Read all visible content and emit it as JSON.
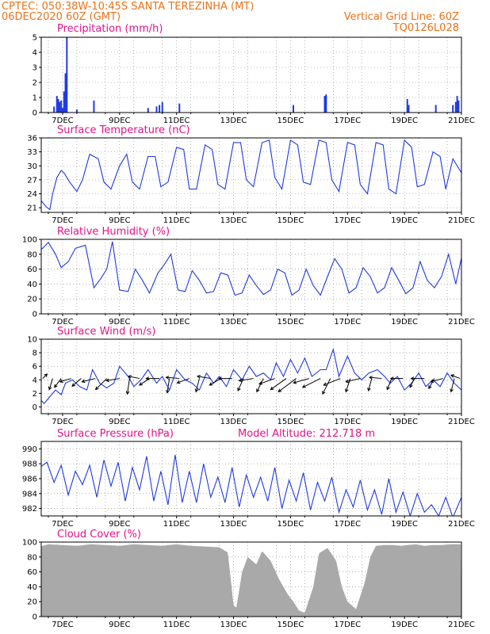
{
  "header": {
    "line1_left": "CPTEC:   050:38W-10:45S   SANTA TEREZINHA (MT)",
    "line2_left": "06DEC2020 60Z (GMT)",
    "line1_right": "Vertical Grid Line: 60Z",
    "line2_right": "TQ0126L028"
  },
  "colors": {
    "header": "#e8731a",
    "title": "#e0148c",
    "series": "#1f3ae0",
    "cloud": "#a9a9a9",
    "arrow": "#000000"
  },
  "x_ticks": [
    "7DEC",
    "9DEC",
    "11DEC",
    "13DEC",
    "15DEC",
    "17DEC",
    "19DEC",
    "21DEC"
  ],
  "chart_data": [
    {
      "id": "precip",
      "type": "bar",
      "title": "Precipitation (mm/h)",
      "ylim": [
        0,
        5
      ],
      "yticks": [
        0,
        1,
        2,
        3,
        4,
        5
      ],
      "grid": true,
      "x_days": [
        6.7,
        6.8,
        6.85,
        6.9,
        6.95,
        7.0,
        7.05,
        7.1,
        7.15,
        7.5,
        8.1,
        10.0,
        10.3,
        10.4,
        10.5,
        11.1,
        15.1,
        16.2,
        16.25,
        19.1,
        19.15,
        20.1,
        20.7,
        20.8,
        20.85,
        20.9
      ],
      "values": [
        0.4,
        1.1,
        0.9,
        0.7,
        0.8,
        0.3,
        1.4,
        2.6,
        5.0,
        0.2,
        0.8,
        0.3,
        0.4,
        0.5,
        0.7,
        0.6,
        0.5,
        1.1,
        1.2,
        0.9,
        0.5,
        0.5,
        0.5,
        0.7,
        1.1,
        0.8
      ]
    },
    {
      "id": "temp",
      "type": "line",
      "title": "Surface Temperature (nC)",
      "ylim": [
        20,
        36
      ],
      "yticks": [
        21,
        24,
        27,
        30,
        33,
        36
      ],
      "grid": true,
      "x_days": [
        6.25,
        6.42,
        6.55,
        6.65,
        6.8,
        6.95,
        7.05,
        7.25,
        7.5,
        7.7,
        7.95,
        8.25,
        8.45,
        8.7,
        9.0,
        9.25,
        9.45,
        9.7,
        10.0,
        10.25,
        10.45,
        10.7,
        11.0,
        11.25,
        11.45,
        11.7,
        12.0,
        12.25,
        12.45,
        12.7,
        13.0,
        13.25,
        13.45,
        13.7,
        14.0,
        14.25,
        14.45,
        14.7,
        15.0,
        15.25,
        15.45,
        15.7,
        16.0,
        16.25,
        16.45,
        16.7,
        17.0,
        17.25,
        17.45,
        17.7,
        18.0,
        18.25,
        18.45,
        18.7,
        19.0,
        19.25,
        19.45,
        19.7,
        20.0,
        20.25,
        20.45,
        20.7,
        21.0
      ],
      "values": [
        22.5,
        21.2,
        20.6,
        24.0,
        27.5,
        29.0,
        28.5,
        26.5,
        24.5,
        27.0,
        32.5,
        31.5,
        26.5,
        25.0,
        30.0,
        32.5,
        26.5,
        25.0,
        32.0,
        32.0,
        25.5,
        26.5,
        34.0,
        33.5,
        25.0,
        25.0,
        34.5,
        33.5,
        26.0,
        25.0,
        35.0,
        35.0,
        27.0,
        25.5,
        35.0,
        35.5,
        27.5,
        25.0,
        35.5,
        34.5,
        26.5,
        26.0,
        35.5,
        35.0,
        27.0,
        24.5,
        35.0,
        34.5,
        26.0,
        24.0,
        35.0,
        34.5,
        25.0,
        24.0,
        35.5,
        34.0,
        25.5,
        26.0,
        33.0,
        32.0,
        25.0,
        31.5,
        28.5
      ]
    },
    {
      "id": "rh",
      "type": "line",
      "title": "Relative Humidity (%)",
      "ylim": [
        0,
        100
      ],
      "yticks": [
        0,
        20,
        40,
        60,
        80,
        100
      ],
      "grid": true,
      "x_days": [
        6.0,
        6.3,
        6.5,
        6.75,
        6.95,
        7.2,
        7.45,
        7.8,
        8.1,
        8.35,
        8.55,
        8.75,
        9.0,
        9.3,
        9.55,
        9.8,
        10.05,
        10.35,
        10.55,
        10.8,
        11.05,
        11.3,
        11.55,
        11.8,
        12.05,
        12.3,
        12.55,
        12.8,
        13.05,
        13.3,
        13.55,
        13.8,
        14.05,
        14.3,
        14.55,
        14.8,
        15.05,
        15.3,
        15.55,
        15.8,
        16.05,
        16.3,
        16.55,
        16.8,
        17.05,
        17.3,
        17.55,
        17.8,
        18.05,
        18.3,
        18.55,
        18.8,
        19.05,
        19.3,
        19.55,
        19.8,
        20.05,
        20.3,
        20.55,
        20.8,
        21.0
      ],
      "values": [
        82,
        88,
        96,
        80,
        62,
        70,
        88,
        92,
        35,
        48,
        60,
        97,
        32,
        30,
        60,
        45,
        28,
        55,
        65,
        80,
        32,
        30,
        58,
        45,
        28,
        30,
        55,
        52,
        25,
        28,
        52,
        38,
        26,
        32,
        60,
        55,
        25,
        32,
        60,
        38,
        25,
        50,
        74,
        60,
        28,
        35,
        62,
        50,
        28,
        35,
        62,
        45,
        27,
        35,
        70,
        45,
        35,
        50,
        80,
        40,
        75
      ]
    },
    {
      "id": "wind",
      "type": "line",
      "title": "Surface Wind (m/s)",
      "ylim": [
        -1,
        10
      ],
      "yticks": [
        0,
        2,
        4,
        6,
        8,
        10
      ],
      "grid": true,
      "x_days": [
        6.0,
        6.2,
        6.35,
        6.55,
        6.75,
        6.95,
        7.1,
        7.35,
        7.6,
        7.85,
        8.05,
        8.3,
        8.55,
        8.8,
        9.0,
        9.3,
        9.5,
        9.75,
        10.0,
        10.3,
        10.5,
        10.75,
        11.0,
        11.3,
        11.55,
        11.8,
        12.05,
        12.3,
        12.5,
        12.75,
        13.0,
        13.3,
        13.55,
        13.8,
        14.05,
        14.3,
        14.5,
        14.75,
        15.0,
        15.25,
        15.5,
        15.75,
        16.05,
        16.25,
        16.5,
        16.7,
        17.0,
        17.25,
        17.5,
        17.75,
        18.05,
        18.3,
        18.5,
        18.75,
        19.0,
        19.25,
        19.5,
        19.75,
        20.0,
        20.25,
        20.5,
        20.75,
        21.0
      ],
      "values": [
        0.5,
        1.2,
        0.5,
        1.5,
        2.5,
        1.8,
        3.5,
        4.0,
        3.0,
        2.5,
        5.5,
        3.5,
        2.8,
        3.5,
        6.0,
        4.5,
        3.0,
        4.0,
        5.5,
        3.5,
        4.5,
        2.5,
        5.5,
        4.0,
        3.5,
        2.5,
        5.0,
        3.5,
        4.5,
        3.0,
        5.5,
        4.0,
        6.0,
        4.5,
        5.0,
        4.0,
        6.5,
        4.5,
        7.0,
        5.0,
        7.2,
        4.5,
        5.5,
        5.5,
        8.5,
        4.5,
        7.5,
        5.0,
        4.0,
        5.0,
        5.5,
        4.5,
        3.5,
        4.5,
        2.5,
        3.5,
        5.0,
        3.0,
        4.0,
        3.0,
        5.0,
        3.5,
        2.5
      ],
      "arrows": [
        {
          "x_day": 6.3,
          "u": 0.4,
          "v": 0.4
        },
        {
          "x_day": 6.65,
          "u": -0.3,
          "v": -1.0
        },
        {
          "x_day": 6.95,
          "u": -0.6,
          "v": -0.8
        },
        {
          "x_day": 7.3,
          "u": -1.0,
          "v": -0.3
        },
        {
          "x_day": 7.65,
          "u": -0.8,
          "v": -0.7
        },
        {
          "x_day": 8.15,
          "u": -1.2,
          "v": -0.3
        },
        {
          "x_day": 8.55,
          "u": -1.0,
          "v": -1.0
        },
        {
          "x_day": 9.0,
          "u": -1.2,
          "v": -0.2
        },
        {
          "x_day": 9.35,
          "u": -0.2,
          "v": -1.4
        },
        {
          "x_day": 9.7,
          "u": -1.0,
          "v": 0.2
        },
        {
          "x_day": 10.05,
          "u": -0.9,
          "v": -0.6
        },
        {
          "x_day": 10.4,
          "u": -1.2,
          "v": 0.0
        },
        {
          "x_day": 10.75,
          "u": -0.2,
          "v": -1.3
        },
        {
          "x_day": 11.1,
          "u": -1.2,
          "v": 0.1
        },
        {
          "x_day": 11.45,
          "u": -1.1,
          "v": -0.4
        },
        {
          "x_day": 11.8,
          "u": -0.3,
          "v": -1.2
        },
        {
          "x_day": 12.2,
          "u": -1.2,
          "v": 0.2
        },
        {
          "x_day": 12.55,
          "u": -1.0,
          "v": -0.6
        },
        {
          "x_day": 12.95,
          "u": -1.2,
          "v": 0.0
        },
        {
          "x_day": 13.35,
          "u": -0.5,
          "v": -1.1
        },
        {
          "x_day": 13.7,
          "u": -1.3,
          "v": -0.2
        },
        {
          "x_day": 14.05,
          "u": -0.6,
          "v": -1.2
        },
        {
          "x_day": 14.45,
          "u": -1.4,
          "v": -0.5
        },
        {
          "x_day": 14.85,
          "u": -1.4,
          "v": -1.0
        },
        {
          "x_day": 15.2,
          "u": -1.6,
          "v": -1.2
        },
        {
          "x_day": 15.65,
          "u": -1.4,
          "v": -0.4
        },
        {
          "x_day": 16.05,
          "u": -1.6,
          "v": -0.8
        },
        {
          "x_day": 16.4,
          "u": -0.7,
          "v": -1.4
        },
        {
          "x_day": 16.75,
          "u": -1.5,
          "v": -0.6
        },
        {
          "x_day": 17.1,
          "u": -0.4,
          "v": -1.2
        },
        {
          "x_day": 17.45,
          "u": -1.3,
          "v": -0.3
        },
        {
          "x_day": 17.85,
          "u": -0.3,
          "v": -1.1
        },
        {
          "x_day": 18.2,
          "u": -1.1,
          "v": 0.1
        },
        {
          "x_day": 18.55,
          "u": -0.4,
          "v": -1.0
        },
        {
          "x_day": 18.95,
          "u": -1.1,
          "v": 0.0
        },
        {
          "x_day": 19.35,
          "u": -0.4,
          "v": -0.8
        },
        {
          "x_day": 19.7,
          "u": -1.2,
          "v": 0.0
        },
        {
          "x_day": 20.05,
          "u": -0.5,
          "v": -0.9
        },
        {
          "x_day": 20.35,
          "u": -1.1,
          "v": -0.3
        },
        {
          "x_day": 20.75,
          "u": -0.3,
          "v": -1.2
        },
        {
          "x_day": 20.95,
          "u": -0.8,
          "v": 0.3
        }
      ]
    },
    {
      "id": "pres",
      "type": "line",
      "title": "Surface Pressure (hPa)",
      "annotation": "Model Altitude: 212.718 m",
      "ylim": [
        981,
        991
      ],
      "yticks": [
        982,
        984,
        986,
        988,
        990
      ],
      "grid": true,
      "x_days": [
        6.0,
        6.2,
        6.45,
        6.7,
        6.95,
        7.2,
        7.45,
        7.7,
        7.95,
        8.2,
        8.45,
        8.7,
        8.95,
        9.2,
        9.45,
        9.7,
        9.95,
        10.2,
        10.45,
        10.7,
        10.95,
        11.2,
        11.45,
        11.7,
        11.95,
        12.2,
        12.45,
        12.7,
        12.95,
        13.2,
        13.45,
        13.7,
        13.95,
        14.2,
        14.45,
        14.7,
        14.95,
        15.2,
        15.45,
        15.7,
        15.95,
        16.2,
        16.45,
        16.7,
        16.95,
        17.2,
        17.45,
        17.7,
        17.95,
        18.2,
        18.45,
        18.7,
        18.95,
        19.2,
        19.45,
        19.7,
        19.95,
        20.2,
        20.45,
        20.7,
        21.0
      ],
      "values": [
        986.5,
        987.5,
        988.2,
        985.5,
        987.8,
        983.8,
        987.0,
        985.2,
        987.8,
        983.5,
        988.5,
        985.0,
        988.2,
        983.0,
        987.5,
        984.5,
        989.0,
        983.0,
        987.0,
        982.5,
        989.2,
        982.8,
        987.0,
        982.8,
        988.0,
        983.5,
        986.2,
        982.8,
        987.5,
        982.2,
        986.5,
        983.5,
        986.2,
        983.0,
        987.5,
        982.0,
        985.8,
        983.0,
        986.8,
        981.8,
        985.5,
        983.0,
        986.2,
        981.5,
        984.5,
        982.2,
        985.8,
        981.8,
        984.5,
        981.2,
        986.0,
        981.5,
        984.2,
        981.0,
        984.0,
        981.5,
        982.5,
        981.0,
        983.5,
        980.8,
        983.5
      ]
    },
    {
      "id": "cloud",
      "type": "bar",
      "title": "Cloud Cover (%)",
      "ylim": [
        0,
        100
      ],
      "yticks": [
        0,
        20,
        40,
        60,
        80,
        100
      ],
      "grid": true,
      "x_days": [
        6.0,
        6.5,
        7.0,
        7.5,
        8.0,
        8.5,
        9.0,
        9.5,
        10.0,
        10.5,
        11.0,
        11.5,
        12.0,
        12.5,
        12.8,
        13.0,
        13.1,
        13.3,
        13.5,
        13.8,
        14.0,
        14.3,
        14.6,
        14.9,
        15.1,
        15.3,
        15.5,
        15.8,
        16.0,
        16.3,
        16.6,
        16.8,
        17.0,
        17.3,
        17.6,
        17.8,
        18.0,
        18.3,
        18.6,
        18.9,
        19.1,
        19.4,
        19.7,
        20.0,
        20.3,
        20.6,
        20.9
      ],
      "values": [
        92,
        97,
        96,
        95,
        97,
        96,
        95,
        97,
        96,
        95,
        97,
        95,
        94,
        93,
        86,
        15,
        12,
        60,
        80,
        70,
        88,
        75,
        50,
        30,
        20,
        8,
        5,
        40,
        85,
        92,
        75,
        40,
        20,
        10,
        45,
        80,
        95,
        96,
        96,
        95,
        96,
        97,
        95,
        96,
        96,
        97,
        97
      ]
    }
  ]
}
